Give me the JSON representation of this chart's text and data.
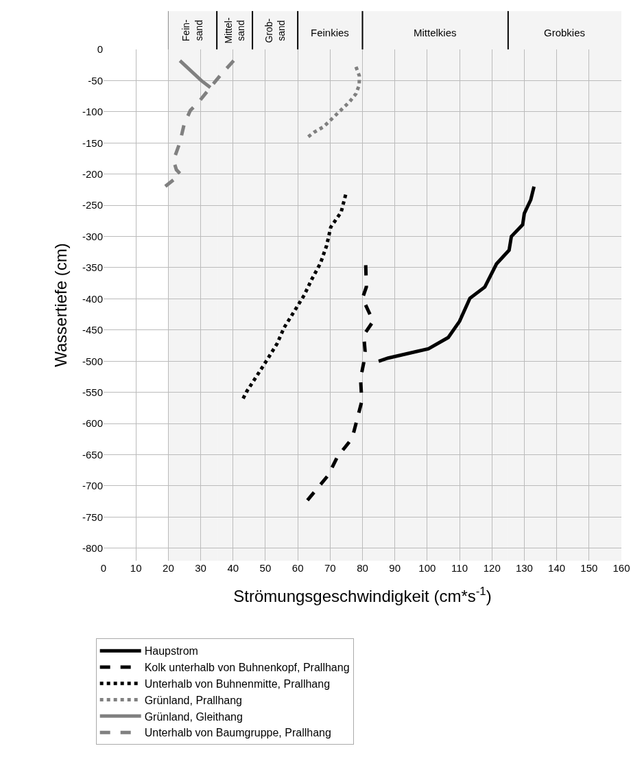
{
  "chart_data": {
    "type": "line",
    "xlabel": "Strömungsgeschwindigkeit (cm*s$^{-1}$)",
    "ylabel": "Wassertiefe (cm)",
    "xlim": [
      0,
      160
    ],
    "ylim": [
      -820,
      0
    ],
    "xticks": [
      0,
      10,
      20,
      30,
      40,
      50,
      60,
      70,
      80,
      90,
      100,
      110,
      120,
      130,
      140,
      150,
      160
    ],
    "yticks": [
      -800,
      -750,
      -700,
      -650,
      -600,
      -550,
      -500,
      -450,
      -400,
      -350,
      -300,
      -250,
      -200,
      -150,
      -100,
      -50,
      0
    ],
    "grid": true,
    "legend": "bottom",
    "marker": "none",
    "bands": [
      {
        "axis": "x",
        "from": 20,
        "to": 35,
        "label": "Fein-\nsand"
      },
      {
        "axis": "x",
        "from": 35,
        "to": 46,
        "label": "Mittel-\nsand"
      },
      {
        "axis": "x",
        "from": 46,
        "to": 60,
        "label": "Grob-\nsand"
      },
      {
        "axis": "x",
        "from": 60,
        "to": 80,
        "label": "Feinkies"
      },
      {
        "axis": "x",
        "from": 80,
        "to": 125,
        "label": "Mittelkies"
      },
      {
        "axis": "x",
        "from": 125,
        "to": 160,
        "label": "Grobkies"
      }
    ],
    "series": [
      {
        "name": "Haupstrom",
        "color": "#000000",
        "line_style": "solid",
        "x": [
          133,
          132,
          130,
          129.5,
          126,
          125.3,
          121.4,
          117.8,
          113.2,
          110,
          106.5,
          100.4,
          87.9,
          85
        ],
        "values": [
          -220,
          -241,
          -263,
          -281,
          -300,
          -322,
          -344,
          -381,
          -399,
          -436,
          -462,
          -480,
          -495,
          -500
        ]
      },
      {
        "name": "Kolk unterhalb von Buhnenkopf, Prallhang",
        "color": "#000000",
        "line_style": "dashed",
        "x": [
          81,
          81.2,
          80,
          83.3,
          80.4,
          80.8,
          80.4,
          79.4,
          79.8,
          77.2,
          76,
          72.3,
          69.4,
          63
        ],
        "values": [
          -346,
          -381,
          -399,
          -436,
          -458,
          -484,
          -502,
          -528,
          -564,
          -616,
          -629,
          -653,
          -683,
          -723
        ]
      },
      {
        "name": "Unterhalb von Buhnenmitte, Prallhang",
        "color": "#000000",
        "line_style": "dotted",
        "x": [
          74.8,
          73.4,
          70.2,
          68.9,
          67,
          64.3,
          62,
          58.8,
          55.8,
          53.6,
          50.5,
          47.3,
          44.3,
          43
        ],
        "values": [
          -233,
          -261,
          -285,
          -315,
          -343,
          -369,
          -394,
          -421,
          -446,
          -472,
          -498,
          -524,
          -548,
          -561
        ]
      },
      {
        "name": "Grünland, Prallhang",
        "color": "#808080",
        "line_style": "dotted",
        "x": [
          78,
          79,
          79,
          78,
          76,
          74,
          72,
          70,
          68,
          65,
          63
        ],
        "values": [
          -28,
          -42,
          -57,
          -71,
          -84,
          -94,
          -104,
          -114,
          -124,
          -133,
          -141
        ]
      },
      {
        "name": "Grünland, Gleithang",
        "color": "#808080",
        "line_style": "solid",
        "x": [
          23.6,
          30.2,
          33
        ],
        "values": [
          -18,
          -50,
          -61
        ]
      },
      {
        "name": "Unterhalb von Baumgruppe, Prallhang",
        "color": "#808080",
        "line_style": "dashed",
        "x": [
          40.2,
          36,
          33,
          29.6,
          26.8,
          24.9,
          23.6,
          21.6,
          22.5,
          23.8,
          19
        ],
        "values": [
          -18,
          -42,
          -61,
          -83,
          -98,
          -120,
          -149,
          -178,
          -193,
          -200,
          -220
        ]
      }
    ]
  }
}
